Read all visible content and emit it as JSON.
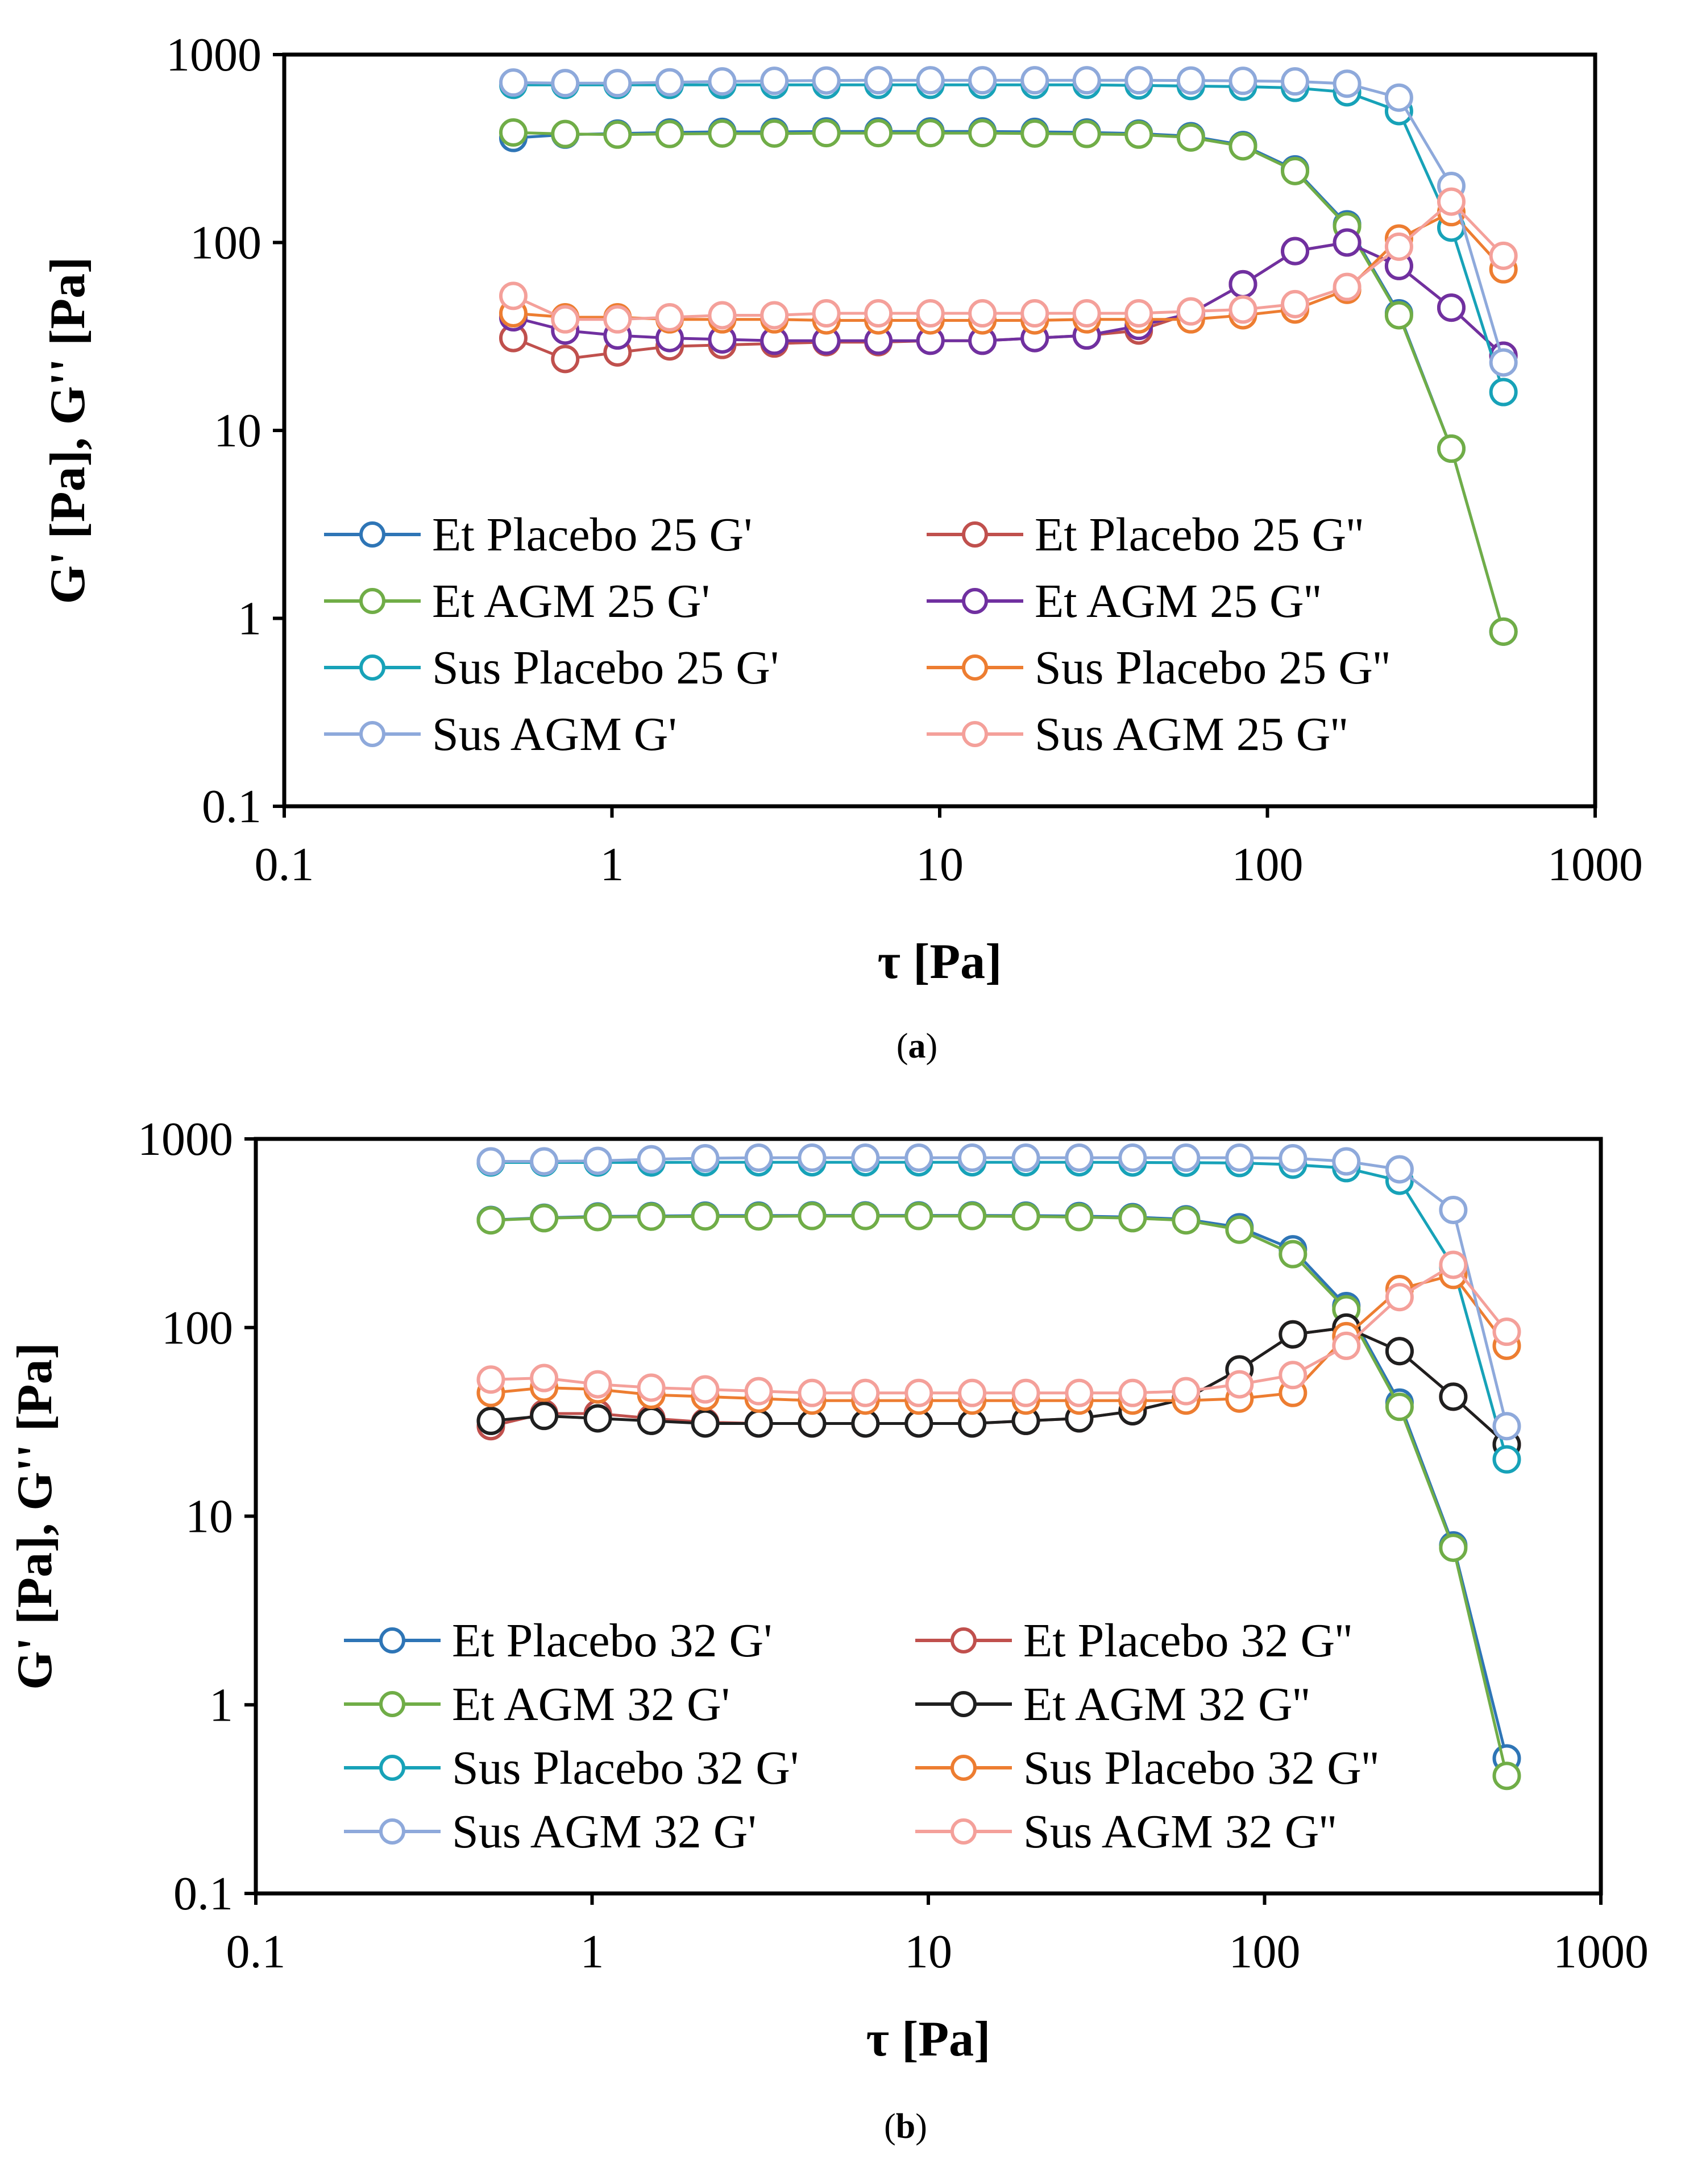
{
  "chart_data": [
    {
      "type": "line",
      "panel": "a",
      "caption_label": "a",
      "xscale": "log",
      "yscale": "log",
      "xlabel": "τ [Pa]",
      "ylabel": "G' [Pa], G'' [Pa]",
      "xlim": [
        0.1,
        1000
      ],
      "ylim": [
        0.1,
        1000
      ],
      "x_ticks": [
        0.1,
        1,
        10,
        100,
        1000
      ],
      "x_tick_labels": [
        "0.1",
        "1",
        "10",
        "100",
        "1000"
      ],
      "y_ticks": [
        0.1,
        1,
        10,
        100,
        1000
      ],
      "y_tick_labels": [
        "0.1",
        "1",
        "10",
        "100",
        "1000"
      ],
      "grid": false,
      "legend_position": "bottom-left",
      "x": [
        0.5,
        0.72,
        1.04,
        1.5,
        2.17,
        3.13,
        4.51,
        6.5,
        9.37,
        13.5,
        19.5,
        28.1,
        40.5,
        58.4,
        84.2,
        121.4,
        175,
        252,
        364,
        525
      ],
      "series": [
        {
          "name": "Et Placebo 25 G'",
          "color": "#2E75B6",
          "values": [
            360,
            375,
            380,
            385,
            388,
            388,
            390,
            390,
            390,
            390,
            388,
            385,
            380,
            368,
            330,
            245,
            125,
            42,
            8,
            0.85
          ]
        },
        {
          "name": "Et Placebo 25 G''",
          "color": "#C0504D",
          "values": [
            31,
            24,
            26,
            28,
            28.5,
            29,
            29.5,
            29.5,
            30,
            30,
            31,
            32,
            34,
            42,
            60,
            90,
            100,
            75,
            45,
            25
          ]
        },
        {
          "name": "Et AGM 25 G'",
          "color": "#70AD47",
          "values": [
            385,
            378,
            375,
            378,
            380,
            380,
            382,
            382,
            382,
            382,
            380,
            378,
            375,
            362,
            325,
            240,
            122,
            41,
            8,
            0.85
          ]
        },
        {
          "name": "Et AGM 25 G''",
          "color": "#7030A0",
          "values": [
            40,
            34,
            32,
            31,
            30.5,
            30,
            30,
            30,
            30,
            30,
            31,
            32,
            36,
            42,
            60,
            90,
            100,
            75,
            45,
            25
          ]
        },
        {
          "name": "Sus Placebo 25 G'",
          "color": "#17A2B8",
          "values": [
            690,
            690,
            690,
            690,
            690,
            690,
            690,
            690,
            690,
            690,
            690,
            690,
            685,
            680,
            675,
            665,
            630,
            500,
            120,
            16
          ]
        },
        {
          "name": "Sus Placebo 25 G''",
          "color": "#ED7D31",
          "values": [
            42,
            40,
            40,
            39,
            39,
            39,
            38.5,
            38.5,
            38.5,
            38.5,
            38.5,
            39,
            39,
            39,
            41,
            44,
            56,
            105,
            145,
            72
          ]
        },
        {
          "name": "Sus AGM G'",
          "color": "#8EA9DB",
          "values": [
            710,
            705,
            705,
            712,
            720,
            725,
            728,
            730,
            730,
            730,
            730,
            730,
            730,
            728,
            725,
            720,
            700,
            590,
            200,
            23
          ]
        },
        {
          "name": "Sus AGM 25 G''",
          "color": "#F4A09A",
          "values": [
            52,
            39,
            39,
            40,
            41,
            41,
            42,
            42,
            42,
            42,
            42,
            42,
            42,
            43,
            44,
            47,
            58,
            95,
            165,
            85
          ]
        }
      ]
    },
    {
      "type": "line",
      "panel": "b",
      "caption_label": "b",
      "xscale": "log",
      "yscale": "log",
      "xlabel": "τ [Pa]",
      "ylabel": "G' [Pa], G'' [Pa]",
      "xlim": [
        0.1,
        1000
      ],
      "ylim": [
        0.1,
        1000
      ],
      "x_ticks": [
        0.1,
        1,
        10,
        100,
        1000
      ],
      "x_tick_labels": [
        "0.1",
        "1",
        "10",
        "100",
        "1000"
      ],
      "y_ticks": [
        0.1,
        1,
        10,
        100,
        1000
      ],
      "y_tick_labels": [
        "0.1",
        "1",
        "10",
        "100",
        "1000"
      ],
      "grid": false,
      "legend_position": "bottom-left",
      "x": [
        0.5,
        0.72,
        1.04,
        1.5,
        2.17,
        3.13,
        4.51,
        6.5,
        9.37,
        13.5,
        19.5,
        28.1,
        40.5,
        58.4,
        84.2,
        121.4,
        175,
        252,
        364,
        525
      ],
      "series": [
        {
          "name": "Et Placebo 32 G'",
          "color": "#2E75B6",
          "values": [
            372,
            382,
            388,
            390,
            392,
            392,
            393,
            393,
            393,
            393,
            392,
            390,
            385,
            375,
            340,
            260,
            130,
            40,
            7,
            0.52
          ]
        },
        {
          "name": "Et Placebo 32 G''",
          "color": "#C0504D",
          "values": [
            30,
            35,
            35,
            33,
            31.5,
            31,
            31,
            31,
            31,
            31,
            32,
            33,
            36,
            42,
            60,
            92,
            100,
            75,
            43,
            24
          ]
        },
        {
          "name": "Et AGM 32 G'",
          "color": "#70AD47",
          "values": [
            370,
            380,
            385,
            387,
            388,
            388,
            390,
            390,
            390,
            390,
            388,
            385,
            380,
            370,
            330,
            245,
            125,
            38,
            6.8,
            0.42
          ]
        },
        {
          "name": "Et AGM 32 G''",
          "color": "#1F1F1F",
          "values": [
            32,
            34,
            33,
            32,
            31,
            31,
            31,
            31,
            31,
            31,
            32,
            33,
            36,
            42,
            60,
            92,
            100,
            75,
            43,
            24
          ]
        },
        {
          "name": "Sus Placebo 32 G'",
          "color": "#17A2B8",
          "values": [
            750,
            750,
            750,
            750,
            752,
            752,
            752,
            752,
            752,
            752,
            752,
            752,
            750,
            748,
            745,
            730,
            700,
            600,
            210,
            20
          ]
        },
        {
          "name": "Sus Placebo 32 G''",
          "color": "#ED7D31",
          "values": [
            45,
            48,
            47,
            44,
            43,
            42,
            41,
            41,
            41,
            41,
            41,
            41,
            41,
            41,
            42,
            45,
            90,
            160,
            190,
            80
          ]
        },
        {
          "name": "Sus AGM 32 G'",
          "color": "#8EA9DB",
          "values": [
            760,
            760,
            765,
            780,
            790,
            795,
            795,
            795,
            795,
            795,
            795,
            795,
            795,
            795,
            795,
            790,
            760,
            690,
            420,
            30
          ]
        },
        {
          "name": "Sus AGM 32 G''",
          "color": "#F4A09A",
          "values": [
            53,
            54,
            50,
            48,
            47,
            46,
            45,
            45,
            45,
            45,
            45,
            45,
            45,
            46,
            50,
            56,
            80,
            145,
            215,
            95
          ]
        }
      ]
    }
  ]
}
